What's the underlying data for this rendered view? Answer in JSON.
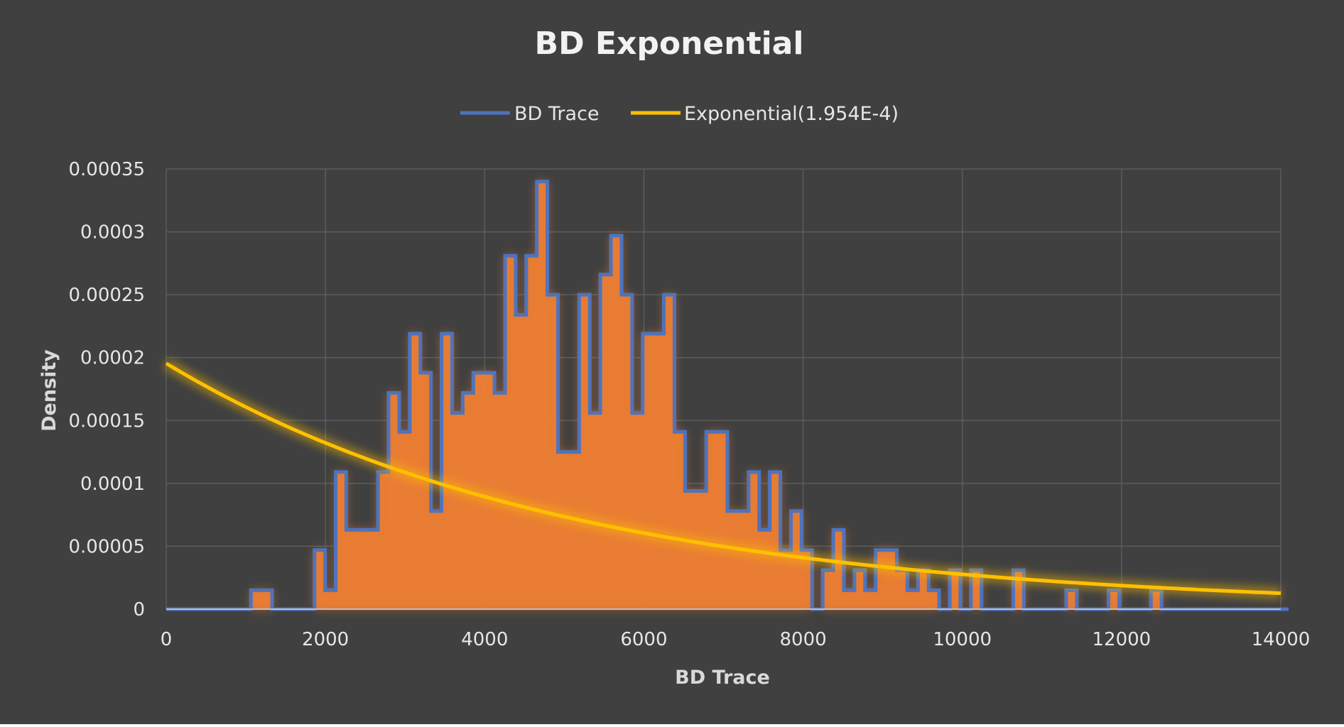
{
  "chart_data": {
    "type": "area",
    "title": "BD Exponential",
    "xlabel": "BD Trace",
    "ylabel": "Density",
    "xlim": [
      0,
      14000
    ],
    "ylim": [
      0,
      0.00035
    ],
    "grid": true,
    "legend_position": "top-center",
    "x_ticks": [
      "0",
      "2000",
      "4000",
      "6000",
      "8000",
      "10000",
      "12000",
      "14000"
    ],
    "y_ticks": [
      "0",
      "0.00005",
      "0.0001",
      "0.00015",
      "0.0002",
      "0.00025",
      "0.0003",
      "0.00035"
    ],
    "series": [
      {
        "name": "BD Trace",
        "kind": "step-histogram",
        "bin_width": 133,
        "bin_edges_start": 0,
        "values": [
          0,
          0,
          0,
          0,
          0,
          0,
          0,
          0,
          1.5e-05,
          1.5e-05,
          0,
          0,
          0,
          0,
          4.7e-05,
          1.5e-05,
          0.000109,
          6.3e-05,
          6.3e-05,
          6.3e-05,
          0.000109,
          0.000172,
          0.000141,
          0.000219,
          0.000188,
          7.8e-05,
          0.000219,
          0.000156,
          0.000172,
          0.000188,
          0.000188,
          0.000172,
          0.000281,
          0.000234,
          0.000281,
          0.00034,
          0.00025,
          0.000125,
          0.000125,
          0.00025,
          0.000156,
          0.000266,
          0.000297,
          0.00025,
          0.000156,
          0.000219,
          0.000219,
          0.00025,
          0.000141,
          9.4e-05,
          9.4e-05,
          0.000141,
          0.000141,
          7.8e-05,
          7.8e-05,
          0.000109,
          6.3e-05,
          0.000109,
          4.7e-05,
          7.8e-05,
          4.7e-05,
          0,
          3.1e-05,
          6.3e-05,
          1.5e-05,
          3.1e-05,
          1.5e-05,
          4.7e-05,
          4.7e-05,
          3.1e-05,
          1.5e-05,
          3.1e-05,
          1.5e-05,
          0,
          3.1e-05,
          0,
          3.1e-05,
          0,
          0,
          0,
          3.1e-05,
          0,
          0,
          0,
          0,
          1.5e-05,
          0,
          0,
          0,
          1.5e-05,
          0,
          0,
          0,
          1.5e-05,
          0,
          0,
          0,
          0,
          0,
          0,
          0,
          0,
          0,
          0,
          0,
          0
        ],
        "fill_color": "#ef7f33",
        "line_color": "#4f73bd"
      },
      {
        "name": "Exponential(1.954E-4)",
        "kind": "line",
        "rate": 0.0001954,
        "color": "#ffc000"
      }
    ]
  }
}
